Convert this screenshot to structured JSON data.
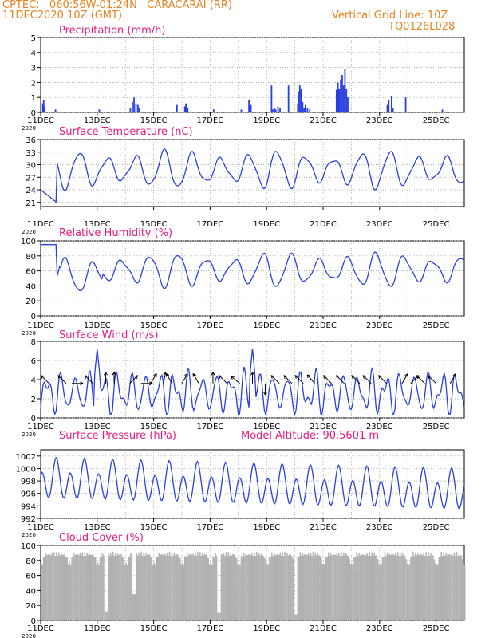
{
  "header": {
    "line1": "CPTEC:   060:56W-01:24N   CARACARAI (RR)",
    "line2": "11DEC2020 10Z (GMT)",
    "right1": "Vertical Grid Line: 10Z",
    "right2": "TQ0126L028"
  },
  "colors": {
    "header": "#e8821e",
    "title": "#e6197f",
    "series": "#2a3fe0",
    "cloud": "#b0b0b0",
    "grid": "#9a9a9a"
  },
  "x_axis": {
    "tick_labels": [
      "11DEC",
      "13DEC",
      "15DEC",
      "17DEC",
      "19DEC",
      "21DEC",
      "23DEC",
      "25DEC"
    ],
    "year_label": "2020",
    "range_days": [
      0,
      15
    ]
  },
  "chart_data": [
    {
      "id": "precip",
      "type": "bar",
      "title": "Precipitation (mm/h)",
      "ylim": [
        0,
        5
      ],
      "yticks": [
        0,
        1,
        2,
        3,
        4,
        5
      ],
      "x_unit": "days since 11DEC 10Z",
      "x": [
        0.05,
        0.08,
        0.12,
        0.5,
        2.05,
        3.15,
        3.22,
        3.28,
        3.35,
        3.42,
        3.47,
        4.8,
        5.08,
        5.12,
        5.18,
        6.1,
        7.08,
        7.35,
        7.42,
        8.15,
        8.2,
        8.25,
        8.3,
        8.38,
        8.45,
        8.75,
        9.08,
        9.1,
        9.15,
        9.2,
        9.25,
        9.3,
        9.35,
        9.42,
        9.5,
        10.45,
        10.5,
        10.55,
        10.6,
        10.65,
        10.7,
        10.75,
        10.8,
        10.85,
        12.25,
        12.3,
        12.4,
        12.45,
        12.9,
        14.2
      ],
      "values": [
        0.6,
        0.8,
        0.4,
        0.2,
        0.2,
        0.3,
        0.7,
        1.0,
        0.6,
        0.5,
        0.3,
        0.5,
        0.4,
        0.6,
        0.3,
        0.2,
        0.2,
        0.8,
        0.5,
        1.8,
        0.2,
        0.3,
        0.2,
        0.4,
        0.3,
        1.8,
        0.6,
        1.4,
        1.8,
        1.6,
        0.7,
        0.3,
        0.5,
        0.3,
        0.2,
        1.5,
        2.0,
        1.6,
        2.2,
        2.5,
        1.8,
        2.9,
        1.6,
        1.0,
        0.5,
        0.8,
        1.1,
        0.3,
        1.0,
        0.2
      ]
    },
    {
      "id": "temp",
      "type": "line",
      "title": "Surface Temperature (nC)",
      "ylim": [
        20,
        36
      ],
      "yticks": [
        21,
        24,
        27,
        30,
        33,
        36
      ]
    },
    {
      "id": "rh",
      "type": "line",
      "title": "Relative Humidity (%)",
      "ylim": [
        0,
        100
      ],
      "yticks": [
        0,
        20,
        40,
        60,
        80,
        100
      ]
    },
    {
      "id": "wind",
      "type": "line",
      "title": "Surface Wind (m/s)",
      "ylim": [
        0,
        8
      ],
      "yticks": [
        0,
        2,
        4,
        6,
        8
      ],
      "arrows": [
        {
          "x": 0.3,
          "y": 3.6,
          "dir": 225
        },
        {
          "x": 0.9,
          "y": 3.6,
          "dir": 225
        },
        {
          "x": 1.1,
          "y": 3.6,
          "dir": 0
        },
        {
          "x": 1.85,
          "y": 3.6,
          "dir": 225
        },
        {
          "x": 2.3,
          "y": 3.6,
          "dir": 270
        },
        {
          "x": 2.6,
          "y": 3.6,
          "dir": 270
        },
        {
          "x": 3.15,
          "y": 3.6,
          "dir": 315
        },
        {
          "x": 3.55,
          "y": 3.6,
          "dir": 0
        },
        {
          "x": 3.9,
          "y": 3.6,
          "dir": 300
        },
        {
          "x": 4.35,
          "y": 3.6,
          "dir": 280
        },
        {
          "x": 4.65,
          "y": 3.6,
          "dir": 240
        },
        {
          "x": 5.0,
          "y": 3.6,
          "dir": 300
        },
        {
          "x": 5.6,
          "y": 3.6,
          "dir": 240
        },
        {
          "x": 6.1,
          "y": 3.6,
          "dir": 270
        },
        {
          "x": 6.6,
          "y": 3.6,
          "dir": 225
        },
        {
          "x": 7.05,
          "y": 3.6,
          "dir": 220
        },
        {
          "x": 7.5,
          "y": 3.6,
          "dir": 270
        },
        {
          "x": 7.95,
          "y": 3.6,
          "dir": 90
        },
        {
          "x": 8.45,
          "y": 3.6,
          "dir": 225
        },
        {
          "x": 8.9,
          "y": 3.6,
          "dir": 225
        },
        {
          "x": 9.3,
          "y": 3.6,
          "dir": 225
        },
        {
          "x": 9.7,
          "y": 3.6,
          "dir": 230
        },
        {
          "x": 10.3,
          "y": 3.6,
          "dir": 225
        },
        {
          "x": 10.75,
          "y": 3.6,
          "dir": 225
        },
        {
          "x": 11.3,
          "y": 3.6,
          "dir": 225
        },
        {
          "x": 11.7,
          "y": 3.6,
          "dir": 225
        },
        {
          "x": 12.25,
          "y": 3.6,
          "dir": 225
        },
        {
          "x": 12.8,
          "y": 3.6,
          "dir": 300
        },
        {
          "x": 13.1,
          "y": 3.6,
          "dir": 315
        },
        {
          "x": 13.6,
          "y": 3.6,
          "dir": 225
        },
        {
          "x": 14.0,
          "y": 3.6,
          "dir": 225
        },
        {
          "x": 14.5,
          "y": 3.6,
          "dir": 300
        }
      ]
    },
    {
      "id": "press",
      "type": "line",
      "title": "Surface Pressure (hPa)",
      "extra_label": "Model Altitude: 90.5601  m",
      "ylim": [
        992,
        1003
      ],
      "yticks": [
        992,
        994,
        996,
        998,
        1000,
        1002
      ]
    },
    {
      "id": "cloud",
      "type": "area",
      "title": "Cloud Cover (%)",
      "ylim": [
        0,
        100
      ],
      "yticks": [
        0,
        20,
        40,
        60,
        80,
        100
      ]
    }
  ]
}
